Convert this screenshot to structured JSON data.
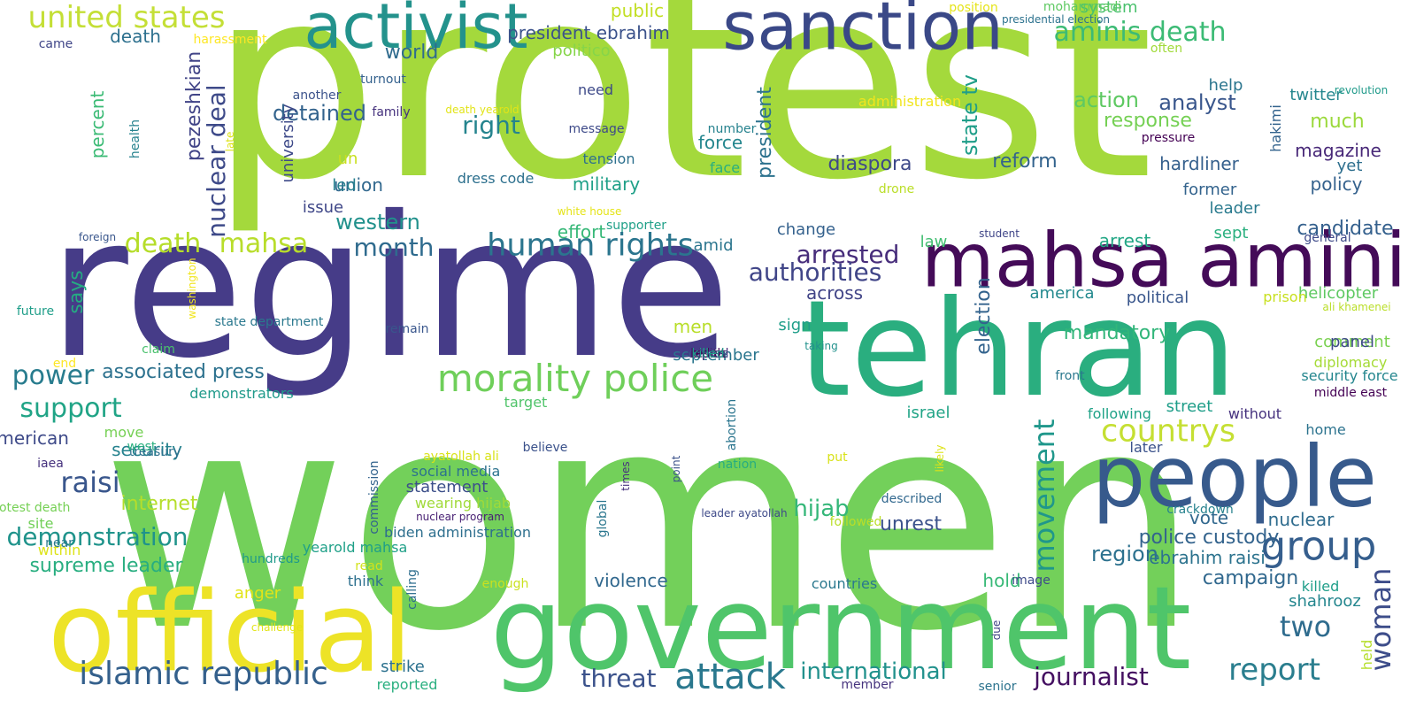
{
  "words": [
    {
      "text": "protest",
      "color": "#a4d93c"
    },
    {
      "text": "women",
      "color": "#73d05a"
    },
    {
      "text": "regime",
      "color": "#463c88"
    },
    {
      "text": "tehran",
      "color": "#2aae7f"
    },
    {
      "text": "government",
      "color": "#4fc56a"
    },
    {
      "text": "official",
      "color": "#ede327"
    },
    {
      "text": "mahsa amini",
      "color": "#440b58"
    },
    {
      "text": "people",
      "color": "#375a8c"
    },
    {
      "text": "activist",
      "color": "#23928c"
    },
    {
      "text": "sanction",
      "color": "#3a4887"
    },
    {
      "text": "morality police",
      "color": "#6fcf5a"
    },
    {
      "text": "human rights",
      "color": "#2b758e"
    },
    {
      "text": "islamic republic",
      "color": "#34608c"
    },
    {
      "text": "united states",
      "color": "#c4df36"
    },
    {
      "text": "attack",
      "color": "#2a788e"
    },
    {
      "text": "group",
      "color": "#355e8d"
    },
    {
      "text": "countrys",
      "color": "#c5df33"
    },
    {
      "text": "report",
      "color": "#2a7e8e"
    },
    {
      "text": "movement",
      "color": "#1f978b"
    },
    {
      "text": "woman",
      "color": "#3d4d8a"
    },
    {
      "text": "aminis death",
      "color": "#3cbb75"
    },
    {
      "text": "month",
      "color": "#2f6b8e"
    },
    {
      "text": "mahsa",
      "color": "#b8dd2b"
    },
    {
      "text": "death",
      "color": "#b5dd29"
    },
    {
      "text": "nuclear deal",
      "color": "#3e4a89"
    },
    {
      "text": "power",
      "color": "#287c8e"
    },
    {
      "text": "support",
      "color": "#20a486"
    },
    {
      "text": "raisi",
      "color": "#39568c"
    },
    {
      "text": "demonstration",
      "color": "#1f938b"
    },
    {
      "text": "supreme leader",
      "color": "#28ae80"
    },
    {
      "text": "associated press",
      "color": "#2c718e"
    },
    {
      "text": "two",
      "color": "#2f6c8e"
    },
    {
      "text": "journalist",
      "color": "#440f61"
    },
    {
      "text": "international",
      "color": "#21918c"
    },
    {
      "text": "threat",
      "color": "#3b528b"
    },
    {
      "text": "arrested",
      "color": "#472d7b"
    },
    {
      "text": "authorities",
      "color": "#404588"
    },
    {
      "text": "right",
      "color": "#25848e"
    },
    {
      "text": "hijab",
      "color": "#35b779"
    },
    {
      "text": "diaspora",
      "color": "#3e4989"
    },
    {
      "text": "state tv",
      "color": "#1f9e89"
    },
    {
      "text": "president",
      "color": "#2c728e"
    },
    {
      "text": "pezeshkian",
      "color": "#414487"
    },
    {
      "text": "detained",
      "color": "#33638d"
    },
    {
      "text": "world",
      "color": "#2f6b8e"
    },
    {
      "text": "percent",
      "color": "#3bbb75"
    },
    {
      "text": "death",
      "color": "#2d708e"
    },
    {
      "text": "action",
      "color": "#5ec962"
    },
    {
      "text": "analyst",
      "color": "#39568c"
    },
    {
      "text": "much",
      "color": "#9bd93c"
    },
    {
      "text": "magazine",
      "color": "#482878"
    },
    {
      "text": "response",
      "color": "#75d054"
    },
    {
      "text": "hardliner",
      "color": "#35608d"
    },
    {
      "text": "reform",
      "color": "#33638d"
    },
    {
      "text": "policy",
      "color": "#34618d"
    },
    {
      "text": "western",
      "color": "#21918c"
    },
    {
      "text": "union",
      "color": "#31688e"
    },
    {
      "text": "military",
      "color": "#1fa088"
    },
    {
      "text": "force",
      "color": "#24868e"
    },
    {
      "text": "face",
      "color": "#29af7f"
    },
    {
      "text": "arrest",
      "color": "#22a785"
    },
    {
      "text": "election",
      "color": "#33638d"
    },
    {
      "text": "across",
      "color": "#414487"
    },
    {
      "text": "unrest",
      "color": "#3b528b"
    },
    {
      "text": "police custody",
      "color": "#33638d"
    },
    {
      "text": "vote",
      "color": "#31688e"
    },
    {
      "text": "nuclear",
      "color": "#2f6c8e"
    },
    {
      "text": "campaign",
      "color": "#31688e"
    },
    {
      "text": "violence",
      "color": "#31688e"
    },
    {
      "text": "region",
      "color": "#2c718e"
    },
    {
      "text": "ebrahim raisi",
      "color": "#2c738e"
    },
    {
      "text": "hold",
      "color": "#38b977"
    },
    {
      "text": "internet",
      "color": "#b5de2b"
    },
    {
      "text": "security",
      "color": "#26828e"
    },
    {
      "text": "statement",
      "color": "#3c4f8a"
    },
    {
      "text": "candidate",
      "color": "#34608d"
    },
    {
      "text": "mandatory",
      "color": "#32b67a"
    },
    {
      "text": "men",
      "color": "#b8de29"
    },
    {
      "text": "system",
      "color": "#4ac16d"
    },
    {
      "text": "public",
      "color": "#c2df23"
    },
    {
      "text": "president ebrahim",
      "color": "#3b528b"
    },
    {
      "text": "politico",
      "color": "#86d549"
    },
    {
      "text": "university",
      "color": "#3e4a89"
    },
    {
      "text": "un",
      "color": "#c8e020"
    },
    {
      "text": "led",
      "color": "#27808e"
    },
    {
      "text": "issue",
      "color": "#3f4788"
    },
    {
      "text": "says",
      "color": "#25ab82"
    },
    {
      "text": "american",
      "color": "#3e4a89"
    },
    {
      "text": "effort",
      "color": "#37b878"
    },
    {
      "text": "amid",
      "color": "#2b758e"
    },
    {
      "text": "september",
      "color": "#2a768e"
    },
    {
      "text": "sign",
      "color": "#1f9e89"
    },
    {
      "text": "israel",
      "color": "#20a486"
    },
    {
      "text": "law",
      "color": "#42be71"
    },
    {
      "text": "change",
      "color": "#34618d"
    },
    {
      "text": "sept",
      "color": "#2ab07f"
    },
    {
      "text": "help",
      "color": "#2b758e"
    },
    {
      "text": "twitter",
      "color": "#24868e"
    },
    {
      "text": "yet",
      "color": "#2e6f8e"
    },
    {
      "text": "former",
      "color": "#33638d"
    },
    {
      "text": "leader",
      "color": "#297a8e"
    },
    {
      "text": "hakimi",
      "color": "#33638d"
    },
    {
      "text": "america",
      "color": "#23898e"
    },
    {
      "text": "political",
      "color": "#39568c"
    },
    {
      "text": "helicopter",
      "color": "#5ec962"
    },
    {
      "text": "prison",
      "color": "#c8e020"
    },
    {
      "text": "street",
      "color": "#1f9e89"
    },
    {
      "text": "without",
      "color": "#46327e"
    },
    {
      "text": "following",
      "color": "#1fa287"
    },
    {
      "text": "home",
      "color": "#2c738e"
    },
    {
      "text": "later",
      "color": "#3b528b"
    },
    {
      "text": "crackdown",
      "color": "#26828e"
    },
    {
      "text": "comment",
      "color": "#7ad151"
    },
    {
      "text": "diplomacy",
      "color": "#a5db36"
    },
    {
      "text": "security force",
      "color": "#24868e"
    },
    {
      "text": "middle east",
      "color": "#440154"
    },
    {
      "text": "killed",
      "color": "#1f9e89"
    },
    {
      "text": "shahrooz",
      "color": "#24868e"
    },
    {
      "text": "held",
      "color": "#b5de2b"
    },
    {
      "text": "anger",
      "color": "#e2e418"
    },
    {
      "text": "think",
      "color": "#2d708e"
    },
    {
      "text": "strike",
      "color": "#2c718e"
    },
    {
      "text": "countries",
      "color": "#2a788e"
    },
    {
      "text": "image",
      "color": "#3e4a89"
    },
    {
      "text": "senior",
      "color": "#2c738e"
    },
    {
      "text": "member",
      "color": "#46337e"
    },
    {
      "text": "reported",
      "color": "#29af7f"
    },
    {
      "text": "biden administration",
      "color": "#2e6f8e"
    },
    {
      "text": "wearing hijab",
      "color": "#a0da39"
    },
    {
      "text": "social media",
      "color": "#2c728e"
    },
    {
      "text": "nuclear program",
      "color": "#482173"
    },
    {
      "text": "ayatollah ali",
      "color": "#d8e219"
    },
    {
      "text": "believe",
      "color": "#3b528b"
    },
    {
      "text": "target",
      "color": "#50c46a"
    },
    {
      "text": "commission",
      "color": "#33638d"
    },
    {
      "text": "calling",
      "color": "#2e6e8e"
    },
    {
      "text": "global",
      "color": "#2a768e"
    },
    {
      "text": "times",
      "color": "#46307e"
    },
    {
      "text": "point",
      "color": "#3b528b"
    },
    {
      "text": "abortion",
      "color": "#2b758e"
    },
    {
      "text": "nation",
      "color": "#26ad81"
    },
    {
      "text": "leader ayatollah",
      "color": "#3e4a89"
    },
    {
      "text": "described",
      "color": "#31688e"
    },
    {
      "text": "likely",
      "color": "#dde318"
    },
    {
      "text": "followed",
      "color": "#bade28"
    },
    {
      "text": "put",
      "color": "#d8e219"
    },
    {
      "text": "due",
      "color": "#414487"
    },
    {
      "text": "enough",
      "color": "#cae11f"
    },
    {
      "text": "yearold mahsa",
      "color": "#1fa088"
    },
    {
      "text": "read",
      "color": "#d2e21b"
    },
    {
      "text": "hundreds",
      "color": "#1f9a8a"
    },
    {
      "text": "within",
      "color": "#dde318"
    },
    {
      "text": "protest death",
      "color": "#75d054"
    },
    {
      "text": "site",
      "color": "#70cf57"
    },
    {
      "text": "near",
      "color": "#2a788e"
    },
    {
      "text": "iaea",
      "color": "#46327e"
    },
    {
      "text": "treasury",
      "color": "#2d708e"
    },
    {
      "text": "move",
      "color": "#75d054"
    },
    {
      "text": "west",
      "color": "#29af7f"
    },
    {
      "text": "demonstrators",
      "color": "#1f9a8a"
    },
    {
      "text": "end",
      "color": "#fde725"
    },
    {
      "text": "claim",
      "color": "#4ac16d"
    },
    {
      "text": "washington",
      "color": "#f1e51d"
    },
    {
      "text": "remain",
      "color": "#39568c"
    },
    {
      "text": "state department",
      "color": "#2a788e"
    },
    {
      "text": "future",
      "color": "#1f9e89"
    },
    {
      "text": "foreign",
      "color": "#39568c"
    },
    {
      "text": "supporter",
      "color": "#1fa088"
    },
    {
      "text": "white house",
      "color": "#e5e419"
    },
    {
      "text": "dress code",
      "color": "#2d708e"
    },
    {
      "text": "tension",
      "color": "#2d708e"
    },
    {
      "text": "message",
      "color": "#3e4a89"
    },
    {
      "text": "number",
      "color": "#26828e"
    },
    {
      "text": "death yearold",
      "color": "#e2e418"
    },
    {
      "text": "family",
      "color": "#46327e"
    },
    {
      "text": "another",
      "color": "#3b528b"
    },
    {
      "text": "turnout",
      "color": "#34618d"
    },
    {
      "text": "need",
      "color": "#3e4a89"
    },
    {
      "text": "health",
      "color": "#26828e"
    },
    {
      "text": "late",
      "color": "#dde318"
    },
    {
      "text": "harassment",
      "color": "#fde725"
    },
    {
      "text": "came",
      "color": "#404688"
    },
    {
      "text": "mohammadi",
      "color": "#5ec962"
    },
    {
      "text": "position",
      "color": "#e5e419"
    },
    {
      "text": "presidential election",
      "color": "#2c728e"
    },
    {
      "text": "often",
      "color": "#a0da39"
    },
    {
      "text": "revolution",
      "color": "#1f9a8a"
    },
    {
      "text": "pressure",
      "color": "#440154"
    },
    {
      "text": "administration",
      "color": "#f1e51d"
    },
    {
      "text": "drone",
      "color": "#bade28"
    },
    {
      "text": "student",
      "color": "#404688"
    },
    {
      "text": "general",
      "color": "#3e4a89"
    },
    {
      "text": "ali khamenei",
      "color": "#bade28"
    },
    {
      "text": "front",
      "color": "#2a788e"
    },
    {
      "text": "taking",
      "color": "#21918c"
    },
    {
      "text": "challenge",
      "color": "#e2e418"
    },
    {
      "text": "panel",
      "color": "#3e4a89"
    },
    {
      "text": "capital",
      "color": "#482878"
    },
    {
      "text": "biden",
      "color": "#440154"
    },
    {
      "text": "comes",
      "color": "#3b528b"
    },
    {
      "text": "result",
      "color": "#440154"
    },
    {
      "text": "killed",
      "color": "#1f9e89"
    }
  ]
}
